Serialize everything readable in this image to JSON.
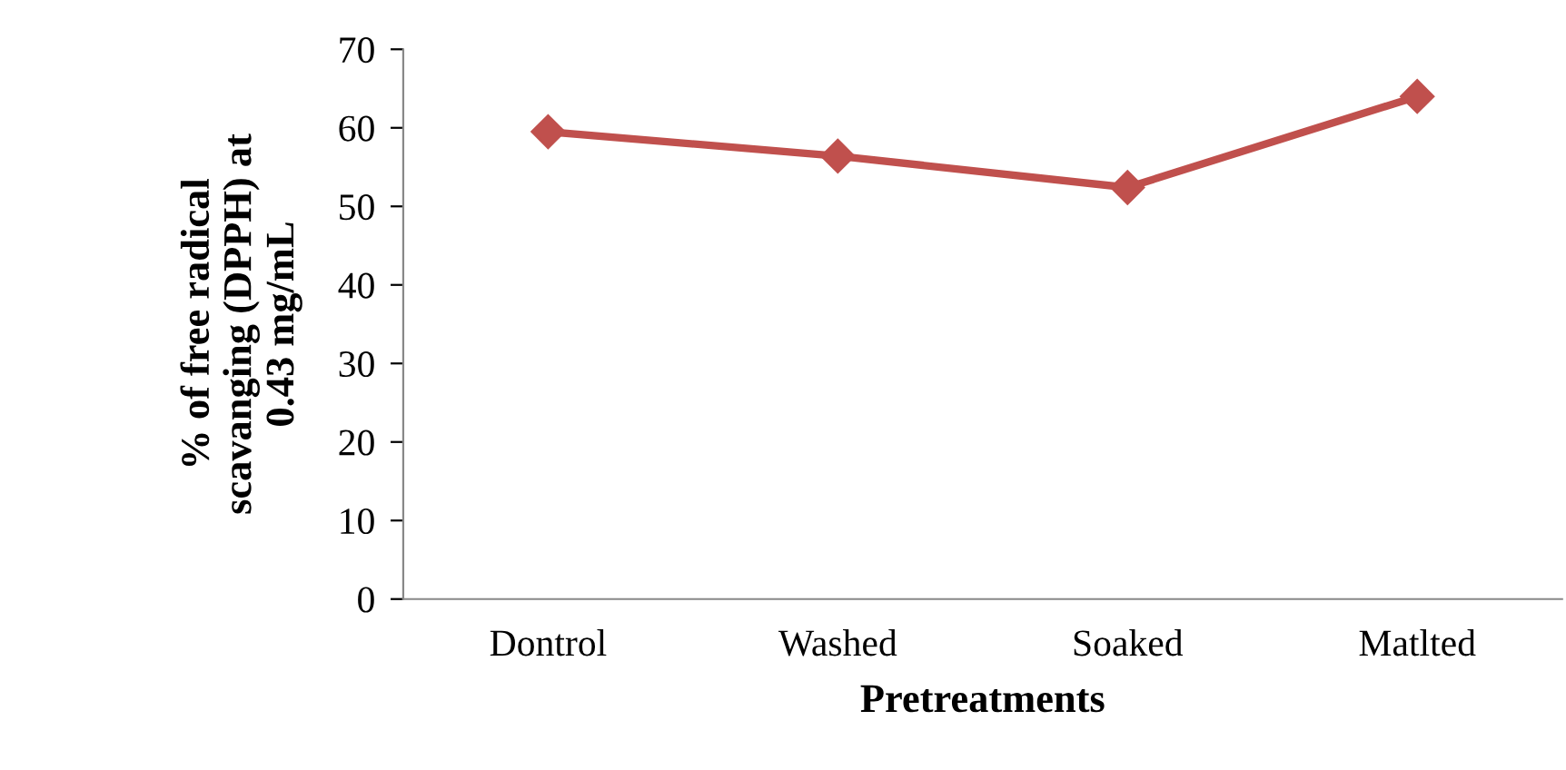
{
  "chart_data": {
    "type": "line",
    "xlabel": "Pretreatments",
    "ylabel": "% of free radical\nscavanging (DPPH) at\n0.43 mg/mL",
    "categories": [
      "Dontrol",
      "Washed",
      "Soaked",
      "Matlted"
    ],
    "series": [
      {
        "color": "#c0504d",
        "values": [
          59.5,
          56.4,
          52.4,
          64.0
        ]
      }
    ],
    "ylim": [
      0,
      70
    ],
    "yticks": [
      0,
      10,
      20,
      30,
      40,
      50,
      60,
      70
    ],
    "marker": "diamond",
    "line_style": "solid",
    "grid": false,
    "legend": false
  }
}
